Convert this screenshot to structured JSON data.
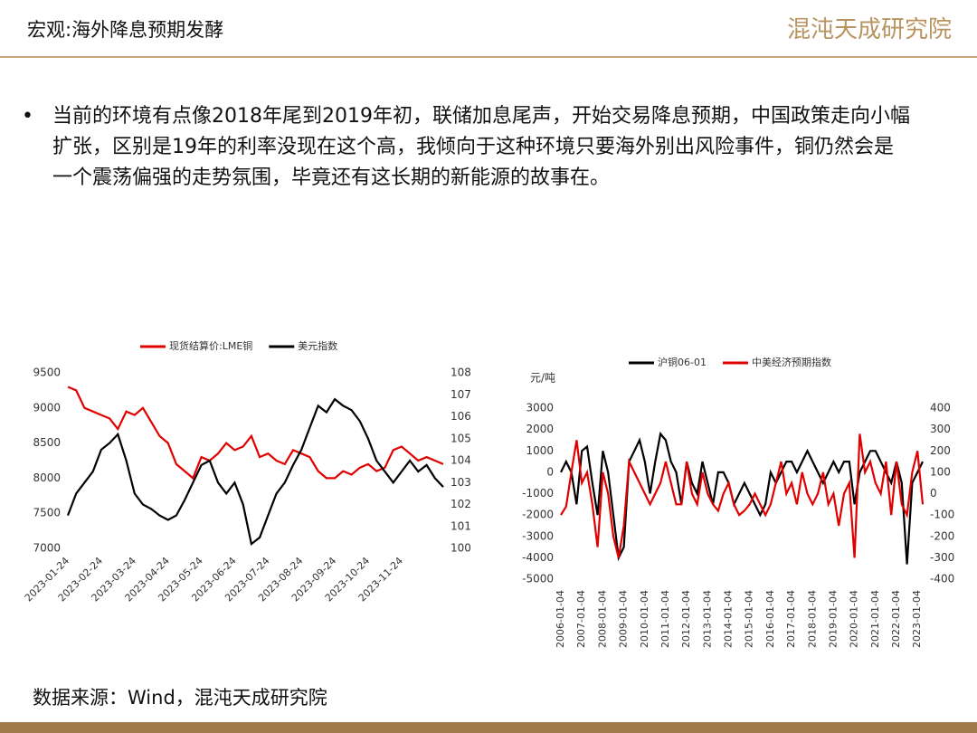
{
  "header": {
    "title": "宏观:海外降息预期发酵",
    "logo": "混沌天成研究院"
  },
  "bullet": "当前的环境有点像2018年尾到2019年初，联储加息尾声，开始交易降息预期，中国政策走向小幅扩张，区别是19年的利率没现在这个高，我倾向于这种环境只要海外别出风险事件，铜仍然会是一个震荡偏强的走势氛围，毕竟还有这长期的新能源的故事在。",
  "source": "数据来源：Wind，混沌天成研究院",
  "chart_data": [
    {
      "type": "line",
      "categories": [
        "2023-01-24",
        null,
        null,
        null,
        "2023-02-24",
        null,
        null,
        null,
        "2023-03-24",
        null,
        null,
        null,
        "2023-04-24",
        null,
        null,
        null,
        "2023-05-24",
        null,
        null,
        null,
        "2023-06-24",
        null,
        null,
        null,
        "2023-07-24",
        null,
        null,
        null,
        "2023-08-24",
        null,
        null,
        null,
        "2023-09-24",
        null,
        null,
        null,
        "2023-10-24",
        null,
        null,
        null,
        "2023-11-24",
        null,
        null,
        null,
        null,
        null
      ],
      "series": [
        {
          "name": "现货结算价:LME铜",
          "color": "#e00000",
          "values": [
            9300,
            9250,
            9000,
            8950,
            8900,
            8850,
            8700,
            8950,
            8900,
            9000,
            8800,
            8600,
            8500,
            8200,
            8100,
            8000,
            8300,
            8250,
            8350,
            8500,
            8400,
            8450,
            8600,
            8300,
            8350,
            8250,
            8200,
            8400,
            8350,
            8300,
            8100,
            8000,
            8000,
            8100,
            8050,
            8150,
            8200,
            8100,
            8150,
            8400,
            8450,
            8350,
            8250,
            8300,
            8250,
            8200
          ]
        },
        {
          "name": "美元指数",
          "color": "#000000",
          "axis": "y2",
          "values": [
            101.5,
            102.5,
            103,
            103.5,
            104.5,
            104.8,
            105.2,
            104,
            102.5,
            102,
            101.8,
            101.5,
            101.3,
            101.5,
            102.2,
            103,
            103.8,
            104,
            103,
            102.5,
            103,
            102,
            100.2,
            100.5,
            101.5,
            102.5,
            103,
            103.8,
            104.5,
            105.5,
            106.5,
            106.2,
            106.8,
            106.5,
            106.3,
            105.8,
            105,
            104,
            103.5,
            103,
            103.5,
            104,
            103.5,
            103.8,
            103.2,
            102.8
          ]
        }
      ],
      "ylim": [
        7000,
        9500
      ],
      "yticks": [
        7000,
        7500,
        8000,
        8500,
        9000,
        9500
      ],
      "y2lim": [
        100,
        108
      ],
      "y2ticks": [
        100,
        101,
        102,
        103,
        104,
        105,
        106,
        107,
        108
      ]
    },
    {
      "type": "line",
      "ylabel": "元/吨",
      "categories": [
        "2006-01-04",
        null,
        null,
        null,
        "2007-01-04",
        null,
        null,
        null,
        "2008-01-04",
        null,
        null,
        null,
        "2009-01-04",
        null,
        null,
        null,
        "2010-01-04",
        null,
        null,
        null,
        "2011-01-04",
        null,
        null,
        null,
        "2012-01-04",
        null,
        null,
        null,
        "2013-01-04",
        null,
        null,
        null,
        "2014-01-04",
        null,
        null,
        null,
        "2015-01-04",
        null,
        null,
        null,
        "2016-01-04",
        null,
        null,
        null,
        "2017-01-04",
        null,
        null,
        null,
        "2018-01-04",
        null,
        null,
        null,
        "2019-01-04",
        null,
        null,
        null,
        "2020-01-04",
        null,
        null,
        null,
        "2021-01-04",
        null,
        null,
        null,
        "2022-01-04",
        null,
        null,
        null,
        "2023-01-04",
        null
      ],
      "series": [
        {
          "name": "沪铜06-01",
          "color": "#000000",
          "values": [
            0,
            500,
            0,
            -1500,
            1000,
            1200,
            -500,
            -2000,
            1000,
            0,
            -2000,
            -4000,
            -3500,
            500,
            1000,
            1500,
            500,
            -1000,
            500,
            1800,
            1500,
            500,
            0,
            -1500,
            500,
            -500,
            -1000,
            500,
            -500,
            -1500,
            0,
            0,
            -500,
            -1500,
            -1000,
            -500,
            -1000,
            -1500,
            -2000,
            -1500,
            0,
            -500,
            0,
            500,
            500,
            0,
            500,
            1000,
            500,
            0,
            -500,
            0,
            500,
            0,
            500,
            500,
            -1500,
            0,
            500,
            1000,
            1000,
            500,
            0,
            -500,
            500,
            -500,
            -4300,
            -500,
            0,
            500
          ]
        },
        {
          "name": "中美经济预期指数",
          "color": "#e00000",
          "axis": "y2",
          "values": [
            -100,
            -60,
            100,
            250,
            50,
            100,
            -50,
            -250,
            100,
            0,
            -200,
            -300,
            -150,
            150,
            100,
            50,
            0,
            -50,
            0,
            50,
            150,
            50,
            -50,
            -50,
            150,
            0,
            -50,
            100,
            0,
            -50,
            -80,
            0,
            50,
            -50,
            -100,
            -80,
            -50,
            0,
            -50,
            -100,
            -50,
            50,
            150,
            0,
            50,
            -50,
            100,
            0,
            -50,
            0,
            100,
            -50,
            0,
            -150,
            0,
            50,
            -300,
            280,
            100,
            150,
            50,
            0,
            150,
            -100,
            150,
            -50,
            -100,
            100,
            200,
            -50
          ]
        }
      ],
      "ylim": [
        -5000,
        3000
      ],
      "yticks": [
        -5000,
        -4000,
        -3000,
        -2000,
        -1000,
        0,
        1000,
        2000,
        3000
      ],
      "y2lim": [
        -400,
        400
      ],
      "y2ticks": [
        -400,
        -300,
        -200,
        -100,
        0,
        100,
        200,
        300,
        400
      ]
    }
  ]
}
